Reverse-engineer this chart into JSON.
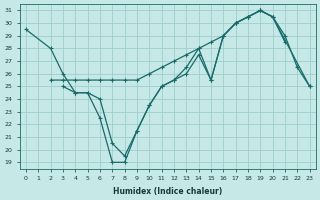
{
  "xlabel": "Humidex (Indice chaleur)",
  "ylabel": "",
  "bg_color": "#c6e8e6",
  "grid_color": "#9ecece",
  "line_color": "#1a6b6b",
  "xlim": [
    -0.5,
    23.5
  ],
  "ylim": [
    18.5,
    31.5
  ],
  "xticks": [
    0,
    1,
    2,
    3,
    4,
    5,
    6,
    7,
    8,
    9,
    10,
    11,
    12,
    13,
    14,
    15,
    16,
    17,
    18,
    19,
    20,
    21,
    22,
    23
  ],
  "yticks": [
    19,
    20,
    21,
    22,
    23,
    24,
    25,
    26,
    27,
    28,
    29,
    30,
    31
  ],
  "line1_x": [
    0,
    2,
    3,
    4,
    5,
    6,
    7,
    8,
    9,
    10,
    11,
    12,
    13,
    14,
    15,
    16,
    17,
    18,
    19,
    20,
    21
  ],
  "line1_y": [
    29.5,
    28.0,
    26.0,
    24.5,
    24.5,
    22.5,
    19.0,
    19.0,
    21.5,
    23.5,
    25.0,
    25.5,
    26.0,
    27.5,
    25.5,
    29.0,
    30.0,
    30.5,
    31.0,
    30.5,
    28.5
  ],
  "line2_x": [
    2,
    3,
    4,
    5,
    6,
    7,
    8,
    9,
    10,
    11,
    12,
    13,
    14,
    15,
    16,
    17,
    18,
    19,
    20,
    23
  ],
  "line2_y": [
    25.5,
    25.5,
    25.5,
    25.5,
    25.5,
    25.5,
    25.5,
    25.5,
    26.0,
    26.5,
    27.0,
    27.5,
    28.0,
    28.5,
    29.0,
    30.0,
    30.5,
    31.0,
    30.5,
    25.0
  ],
  "line3_x": [
    3,
    4,
    5,
    6,
    7,
    8,
    9,
    10,
    11,
    12,
    13,
    14,
    15,
    16,
    17,
    18,
    19,
    20,
    21,
    22,
    23
  ],
  "line3_y": [
    25.0,
    24.5,
    24.5,
    24.0,
    20.5,
    19.5,
    21.5,
    23.5,
    25.0,
    25.5,
    26.5,
    28.0,
    25.5,
    29.0,
    30.0,
    30.5,
    31.0,
    30.5,
    29.0,
    26.5,
    25.0
  ]
}
